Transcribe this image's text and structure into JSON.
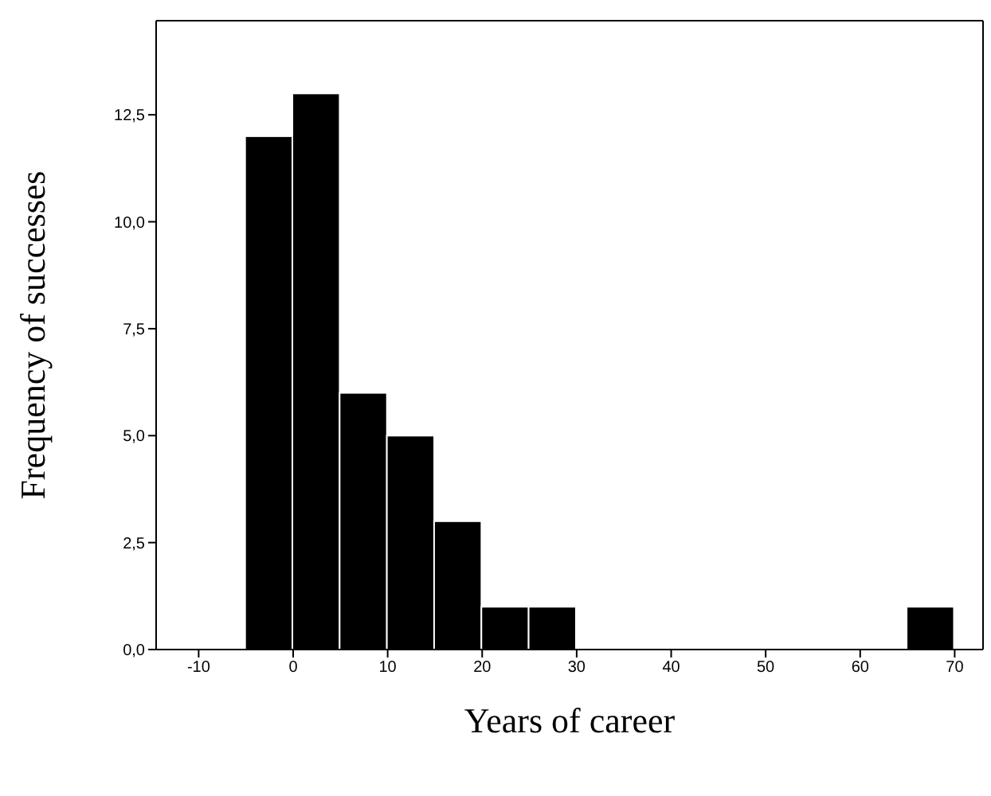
{
  "chart_data": {
    "type": "histogram",
    "xlabel": "Years of career",
    "ylabel": "Frequency of successes",
    "bins": [
      -5,
      0,
      5,
      10,
      15,
      20,
      25,
      30,
      35,
      40,
      45,
      50,
      55,
      60,
      65,
      70
    ],
    "values": [
      12,
      13,
      6,
      5,
      3,
      1,
      1,
      0,
      0,
      0,
      0,
      0,
      0,
      0,
      1
    ],
    "color": "#000000",
    "xlim": [
      -14.5,
      73
    ],
    "xticks": [
      -10,
      0,
      10,
      20,
      30,
      40,
      50,
      60,
      70
    ],
    "ylim": [
      0,
      14.7
    ],
    "yticks": [
      {
        "value": 0,
        "label": "0,0"
      },
      {
        "value": 2.5,
        "label": "2,5"
      },
      {
        "value": 5,
        "label": "5,0"
      },
      {
        "value": 7.5,
        "label": "7,5"
      },
      {
        "value": 10,
        "label": "10,0"
      },
      {
        "value": 12.5,
        "label": "12,5"
      }
    ],
    "grid": false
  }
}
